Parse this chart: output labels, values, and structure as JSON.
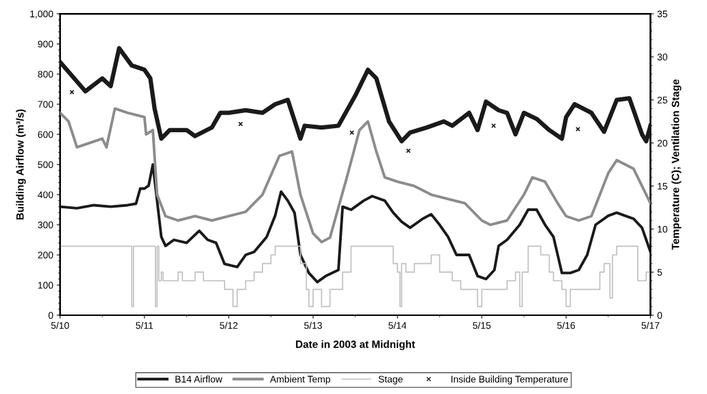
{
  "chart_data": {
    "type": "line",
    "xlabel": "Date in 2003 at Midnight",
    "ylabel": "Building Airflow (m³/s)",
    "y2label": "Temperature (C); Ventilation Stage",
    "xlim": [
      "2003-05-10",
      "2003-05-17"
    ],
    "xticks": [
      {
        "value": "2003-05-10",
        "label": "5/10"
      },
      {
        "value": "2003-05-11",
        "label": "5/11"
      },
      {
        "value": "2003-05-12",
        "label": "5/12"
      },
      {
        "value": "2003-05-13",
        "label": "5/13"
      },
      {
        "value": "2003-05-14",
        "label": "5/14"
      },
      {
        "value": "2003-05-15",
        "label": "5/15"
      },
      {
        "value": "2003-05-16",
        "label": "5/16"
      },
      {
        "value": "2003-05-17",
        "label": "5/17"
      }
    ],
    "ylim": [
      0,
      1000
    ],
    "yticks": [
      0,
      100,
      200,
      300,
      400,
      500,
      600,
      700,
      800,
      900,
      {
        "value": 1000,
        "label": "1,000"
      }
    ],
    "y2lim": [
      0,
      35
    ],
    "y2ticks": [
      0,
      5,
      10,
      15,
      20,
      25,
      30,
      35
    ],
    "grid": false,
    "legend": "bottom",
    "series": [
      {
        "name": "B14 Airflow",
        "type": "line",
        "color": "#1a1a1a",
        "x": [
          "2003-05-10T00:00",
          "2003-05-10T04:48",
          "2003-05-10T09:36",
          "2003-05-10T14:24",
          "2003-05-10T19:12",
          "2003-05-10T21:36",
          "2003-05-10T22:48",
          "2003-05-11T00:00",
          "2003-05-11T01:12",
          "2003-05-11T02:24",
          "2003-05-11T03:36",
          "2003-05-11T04:48",
          "2003-05-11T06:00",
          "2003-05-11T08:24",
          "2003-05-11T12:00",
          "2003-05-11T15:36",
          "2003-05-11T18:00",
          "2003-05-11T20:24",
          "2003-05-11T22:48",
          "2003-05-12T02:24",
          "2003-05-12T04:48",
          "2003-05-12T07:12",
          "2003-05-12T10:48",
          "2003-05-12T13:12",
          "2003-05-12T14:53",
          "2003-05-12T16:48",
          "2003-05-12T18:43",
          "2003-05-12T20:24",
          "2003-05-12T22:48",
          "2003-05-13T01:12",
          "2003-05-13T03:36",
          "2003-05-13T07:12",
          "2003-05-13T08:24",
          "2003-05-13T10:48",
          "2003-05-13T14:24",
          "2003-05-13T16:48",
          "2003-05-13T20:24",
          "2003-05-13T22:48",
          "2003-05-14T01:12",
          "2003-05-14T03:36",
          "2003-05-14T07:12",
          "2003-05-14T09:36",
          "2003-05-14T12:00",
          "2003-05-14T14:24",
          "2003-05-14T16:48",
          "2003-05-14T20:24",
          "2003-05-14T22:48",
          "2003-05-15T01:12",
          "2003-05-15T03:36",
          "2003-05-15T04:48",
          "2003-05-15T07:12",
          "2003-05-15T10:48",
          "2003-05-15T13:12",
          "2003-05-15T15:36",
          "2003-05-15T18:00",
          "2003-05-15T20:24",
          "2003-05-15T22:48",
          "2003-05-16T01:12",
          "2003-05-16T03:36",
          "2003-05-16T06:00",
          "2003-05-16T08:24",
          "2003-05-16T12:00",
          "2003-05-16T14:24",
          "2003-05-16T16:48",
          "2003-05-16T19:12",
          "2003-05-16T21:36",
          "2003-05-17T00:00"
        ],
        "values": [
          360,
          355,
          365,
          360,
          365,
          370,
          420,
          420,
          430,
          500,
          380,
          260,
          230,
          250,
          240,
          280,
          250,
          240,
          170,
          160,
          200,
          210,
          260,
          330,
          410,
          380,
          340,
          200,
          140,
          110,
          130,
          150,
          360,
          350,
          380,
          395,
          380,
          340,
          310,
          290,
          320,
          335,
          300,
          260,
          200,
          200,
          130,
          120,
          150,
          230,
          250,
          300,
          350,
          350,
          300,
          260,
          140,
          140,
          150,
          200,
          300,
          330,
          340,
          330,
          320,
          290,
          210
        ]
      },
      {
        "name": "Ambient Temp",
        "type": "line",
        "axis": "y2",
        "color": "#8c8c8c",
        "x": [
          "2003-05-10T00:00",
          "2003-05-10T02:24",
          "2003-05-10T04:48",
          "2003-05-10T08:24",
          "2003-05-10T12:00",
          "2003-05-10T13:12",
          "2003-05-10T15:36",
          "2003-05-10T19:12",
          "2003-05-11T00:00",
          "2003-05-11T00:29",
          "2003-05-11T02:24",
          "2003-05-11T03:36",
          "2003-05-11T06:00",
          "2003-05-11T09:36",
          "2003-05-11T14:24",
          "2003-05-11T19:12",
          "2003-05-12T00:00",
          "2003-05-12T04:48",
          "2003-05-12T09:36",
          "2003-05-12T14:24",
          "2003-05-12T18:00",
          "2003-05-12T20:24",
          "2003-05-13T00:00",
          "2003-05-13T02:24",
          "2003-05-13T04:48",
          "2003-05-13T09:36",
          "2003-05-13T13:12",
          "2003-05-13T15:36",
          "2003-05-13T18:00",
          "2003-05-13T20:24",
          "2003-05-14T00:00",
          "2003-05-14T04:48",
          "2003-05-14T09:36",
          "2003-05-14T14:24",
          "2003-05-14T19:12",
          "2003-05-15T00:00",
          "2003-05-15T02:24",
          "2003-05-15T07:12",
          "2003-05-15T12:00",
          "2003-05-15T14:24",
          "2003-05-15T18:00",
          "2003-05-15T21:36",
          "2003-05-16T00:00",
          "2003-05-16T03:36",
          "2003-05-16T07:12",
          "2003-05-16T12:00",
          "2003-05-16T14:24",
          "2003-05-16T19:12",
          "2003-05-17T00:00"
        ],
        "values": [
          23.5,
          22.5,
          19.5,
          20,
          20.5,
          19.5,
          24,
          23.5,
          23,
          21,
          21.5,
          14,
          11.5,
          11,
          11.5,
          11,
          11.5,
          12,
          14,
          18.5,
          19,
          14,
          9.5,
          8.5,
          9,
          16,
          21.5,
          22.5,
          19,
          16,
          15.5,
          15,
          14,
          13.5,
          13,
          11,
          10.5,
          11,
          14,
          16,
          15.5,
          13,
          11.5,
          11,
          11.5,
          16.5,
          18,
          17,
          13
        ]
      },
      {
        "name": "Stage",
        "type": "step",
        "axis": "y2",
        "color": "#c0c0c0",
        "x": [
          "2003-05-10T00:00",
          "2003-05-10T20:24",
          "2003-05-10T20:53",
          "2003-05-11T03:07",
          "2003-05-11T03:36",
          "2003-05-11T04:05",
          "2003-05-11T04:48",
          "2003-05-11T05:17",
          "2003-05-11T09:36",
          "2003-05-11T10:48",
          "2003-05-11T14:24",
          "2003-05-11T16:48",
          "2003-05-11T22:48",
          "2003-05-12T01:12",
          "2003-05-12T02:24",
          "2003-05-12T04:48",
          "2003-05-12T07:12",
          "2003-05-12T09:36",
          "2003-05-12T12:00",
          "2003-05-12T13:12",
          "2003-05-12T20:24",
          "2003-05-12T22:05",
          "2003-05-12T22:48",
          "2003-05-13T00:00",
          "2003-05-13T02:24",
          "2003-05-13T04:48",
          "2003-05-13T08:24",
          "2003-05-13T10:48",
          "2003-05-13T22:48",
          "2003-05-14T00:00",
          "2003-05-14T00:43",
          "2003-05-14T01:12",
          "2003-05-14T02:24",
          "2003-05-14T04:48",
          "2003-05-14T09:36",
          "2003-05-14T12:00",
          "2003-05-14T15:36",
          "2003-05-14T18:00",
          "2003-05-14T22:48",
          "2003-05-15T00:00",
          "2003-05-15T07:12",
          "2003-05-15T09:36",
          "2003-05-15T10:48",
          "2003-05-15T11:31",
          "2003-05-15T13:12",
          "2003-05-15T16:48",
          "2003-05-15T19:12",
          "2003-05-15T20:24",
          "2003-05-15T22:48",
          "2003-05-16T00:00",
          "2003-05-16T01:12",
          "2003-05-16T09:36",
          "2003-05-16T10:48",
          "2003-05-16T12:29",
          "2003-05-16T13:12",
          "2003-05-16T14:24",
          "2003-05-16T20:24",
          "2003-05-16T22:48",
          "2003-05-17T00:00"
        ],
        "values": [
          8,
          1,
          8,
          1,
          8,
          4,
          5,
          4,
          5,
          4,
          5,
          4,
          3,
          1,
          3,
          4,
          5,
          6,
          7,
          8,
          6,
          3,
          1,
          3,
          1,
          3,
          5,
          8,
          6,
          5,
          1,
          6,
          5,
          6,
          7,
          5,
          4,
          3,
          1,
          3,
          4,
          5,
          1,
          5,
          8,
          7,
          5,
          4,
          3,
          1,
          3,
          5,
          6,
          2,
          7,
          8,
          4,
          5,
          4
        ]
      },
      {
        "axis": "y2",
        "color": "#1a1a1a",
        "x": [
          "2003-05-10T00:00",
          "2003-05-10T07:12",
          "2003-05-10T12:00",
          "2003-05-10T14:24",
          "2003-05-10T16:48",
          "2003-05-10T20:24",
          "2003-05-11T00:00",
          "2003-05-11T01:41",
          "2003-05-11T02:53",
          "2003-05-11T04:48",
          "2003-05-11T07:12",
          "2003-05-11T12:00",
          "2003-05-11T14:24",
          "2003-05-11T19:12",
          "2003-05-11T21:36",
          "2003-05-12T00:00",
          "2003-05-12T04:48",
          "2003-05-12T09:36",
          "2003-05-12T13:12",
          "2003-05-12T16:48",
          "2003-05-12T20:24",
          "2003-05-12T21:36",
          "2003-05-13T02:24",
          "2003-05-13T07:12",
          "2003-05-13T12:00",
          "2003-05-13T15:36",
          "2003-05-13T18:00",
          "2003-05-13T21:36",
          "2003-05-14T01:12",
          "2003-05-14T03:36",
          "2003-05-14T08:24",
          "2003-05-14T13:12",
          "2003-05-14T15:36",
          "2003-05-14T20:24",
          "2003-05-14T22:48",
          "2003-05-15T01:12",
          "2003-05-15T04:48",
          "2003-05-15T07:12",
          "2003-05-15T09:36",
          "2003-05-15T12:00",
          "2003-05-15T15:36",
          "2003-05-15T19:12",
          "2003-05-15T22:48",
          "2003-05-16T00:00",
          "2003-05-16T02:24",
          "2003-05-16T07:12",
          "2003-05-16T10:48",
          "2003-05-16T14:24",
          "2003-05-16T18:00",
          "2003-05-16T21:36",
          "2003-05-16T22:48",
          "2003-05-17T00:00"
        ],
        "values": [
          29.4,
          26,
          27.5,
          26.6,
          31,
          29,
          28.5,
          27.5,
          24,
          20.5,
          21.5,
          21.5,
          20.8,
          21.8,
          23.5,
          23.5,
          23.8,
          23.5,
          24.5,
          25,
          20.5,
          22,
          21.8,
          22,
          25.5,
          28.5,
          27.5,
          22.5,
          20.2,
          21.2,
          21.8,
          22.5,
          22,
          23.5,
          21.5,
          24.8,
          23.8,
          23.5,
          21,
          23.5,
          22.8,
          21.5,
          20.5,
          23,
          24.5,
          23.5,
          21.3,
          25,
          25.2,
          21,
          20.2,
          22
        ]
      },
      {
        "name": "Inside Building Temperature",
        "type": "scatter",
        "axis": "y2",
        "color": "#1a1a1a",
        "marker": "cross",
        "x": [
          "2003-05-10T03:22",
          "2003-05-12T03:22",
          "2003-05-13T11:02",
          "2003-05-14T03:07",
          "2003-05-15T03:22",
          "2003-05-16T03:22"
        ],
        "values": [
          25.9,
          22.2,
          21.2,
          19.1,
          22,
          21.6
        ]
      }
    ]
  }
}
